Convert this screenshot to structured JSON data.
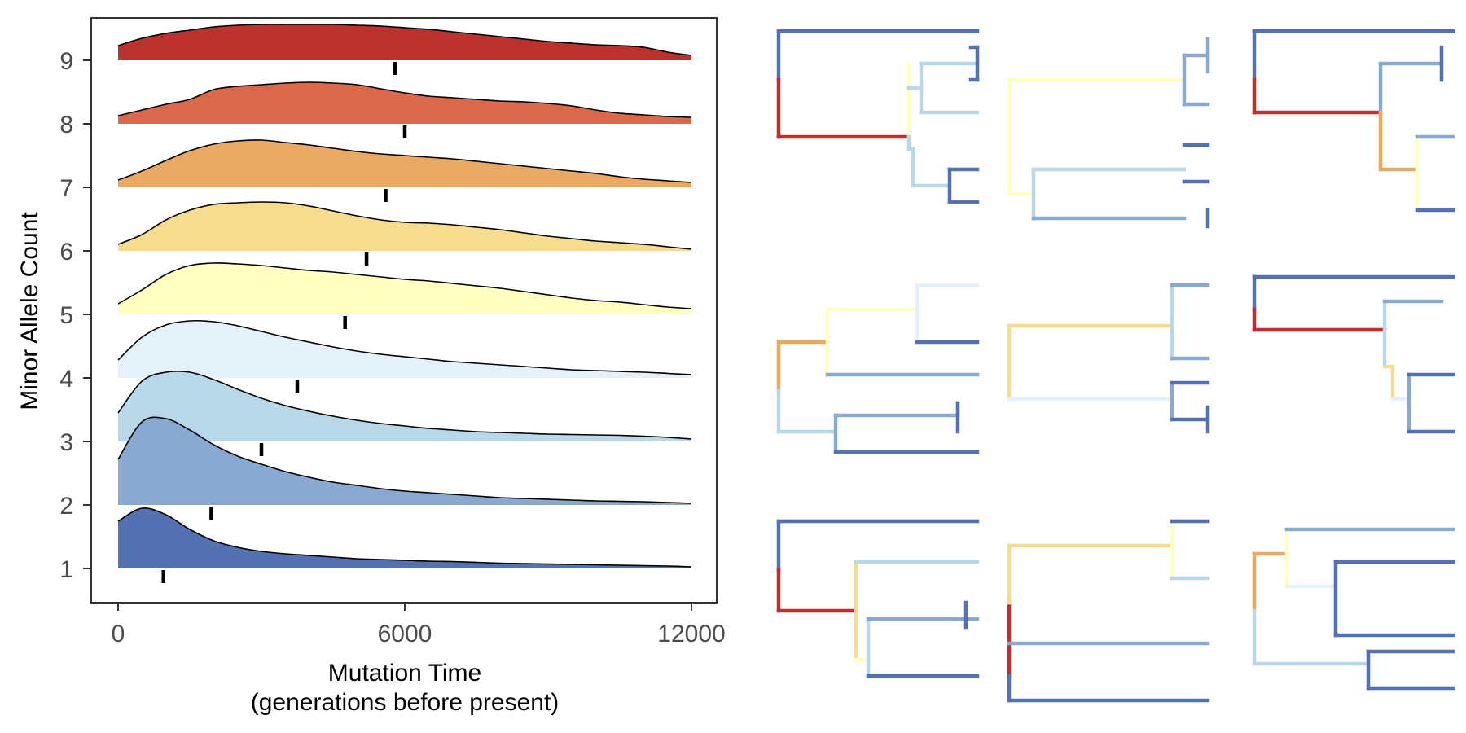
{
  "chart_data": [
    {
      "type": "area",
      "subtype": "ridgeline",
      "title": "",
      "xlabel": "Mutation Time",
      "xlabel_line2": "(generations before present)",
      "ylabel": "Minor Allele Count",
      "xlim": [
        0,
        12000
      ],
      "x_ticks": [
        0,
        6000,
        12000
      ],
      "x_tick_labels": [
        "0",
        "6000",
        "12000"
      ],
      "y_ticks": [
        1,
        2,
        3,
        4,
        5,
        6,
        7,
        8,
        9
      ],
      "y_tick_labels": [
        "1",
        "2",
        "3",
        "4",
        "5",
        "6",
        "7",
        "8",
        "9"
      ],
      "grid": false,
      "legend": "none",
      "x": [
        0,
        500,
        1000,
        1500,
        2000,
        2500,
        3000,
        3500,
        4000,
        4500,
        5000,
        5500,
        6000,
        6500,
        7000,
        7500,
        8000,
        8500,
        9000,
        9500,
        10000,
        10500,
        11000,
        11500,
        12000
      ],
      "series": [
        {
          "count": 1,
          "color": "#5471b2",
          "median": 950,
          "values": [
            0.58,
            0.74,
            0.66,
            0.48,
            0.34,
            0.26,
            0.21,
            0.18,
            0.16,
            0.14,
            0.12,
            0.11,
            0.1,
            0.09,
            0.085,
            0.075,
            0.065,
            0.06,
            0.055,
            0.05,
            0.045,
            0.04,
            0.035,
            0.03,
            0.02
          ]
        },
        {
          "count": 2,
          "color": "#89a9d0",
          "median": 1950,
          "values": [
            0.56,
            1.02,
            1.06,
            0.92,
            0.74,
            0.6,
            0.5,
            0.41,
            0.34,
            0.28,
            0.24,
            0.2,
            0.17,
            0.15,
            0.13,
            0.11,
            0.09,
            0.08,
            0.07,
            0.06,
            0.05,
            0.045,
            0.04,
            0.03,
            0.02
          ]
        },
        {
          "count": 3,
          "color": "#b8d7e8",
          "median": 3000,
          "values": [
            0.35,
            0.74,
            0.85,
            0.85,
            0.76,
            0.64,
            0.53,
            0.44,
            0.37,
            0.31,
            0.26,
            0.22,
            0.19,
            0.16,
            0.14,
            0.12,
            0.11,
            0.1,
            0.09,
            0.085,
            0.08,
            0.075,
            0.065,
            0.05,
            0.03
          ]
        },
        {
          "count": 4,
          "color": "#e4f1f8",
          "median": 3750,
          "values": [
            0.22,
            0.5,
            0.65,
            0.7,
            0.69,
            0.64,
            0.57,
            0.5,
            0.44,
            0.38,
            0.33,
            0.29,
            0.26,
            0.23,
            0.2,
            0.18,
            0.16,
            0.14,
            0.12,
            0.1,
            0.09,
            0.08,
            0.07,
            0.055,
            0.04
          ]
        },
        {
          "count": 5,
          "color": "#feffc1",
          "median": 4750,
          "values": [
            0.13,
            0.3,
            0.49,
            0.6,
            0.63,
            0.62,
            0.6,
            0.57,
            0.54,
            0.52,
            0.49,
            0.46,
            0.43,
            0.41,
            0.38,
            0.35,
            0.32,
            0.28,
            0.24,
            0.2,
            0.17,
            0.15,
            0.12,
            0.09,
            0.07
          ]
        },
        {
          "count": 6,
          "color": "#f6dc8f",
          "median": 5200,
          "values": [
            0.08,
            0.2,
            0.38,
            0.5,
            0.57,
            0.59,
            0.6,
            0.59,
            0.55,
            0.49,
            0.43,
            0.38,
            0.35,
            0.34,
            0.32,
            0.29,
            0.26,
            0.22,
            0.18,
            0.15,
            0.12,
            0.1,
            0.08,
            0.05,
            0.02
          ]
        },
        {
          "count": 7,
          "color": "#e9a962",
          "median": 5600,
          "values": [
            0.09,
            0.2,
            0.33,
            0.45,
            0.53,
            0.57,
            0.58,
            0.55,
            0.52,
            0.48,
            0.44,
            0.41,
            0.39,
            0.37,
            0.35,
            0.32,
            0.29,
            0.26,
            0.23,
            0.2,
            0.17,
            0.13,
            0.1,
            0.08,
            0.06
          ]
        },
        {
          "count": 8,
          "color": "#d9694a",
          "median": 6000,
          "values": [
            0.1,
            0.17,
            0.24,
            0.3,
            0.42,
            0.46,
            0.48,
            0.5,
            0.51,
            0.5,
            0.48,
            0.43,
            0.38,
            0.34,
            0.32,
            0.3,
            0.28,
            0.27,
            0.25,
            0.22,
            0.17,
            0.13,
            0.11,
            0.09,
            0.08
          ]
        },
        {
          "count": 9,
          "color": "#bb312d",
          "median": 5800,
          "values": [
            0.18,
            0.27,
            0.33,
            0.37,
            0.41,
            0.43,
            0.44,
            0.44,
            0.44,
            0.44,
            0.43,
            0.42,
            0.4,
            0.38,
            0.35,
            0.32,
            0.29,
            0.26,
            0.23,
            0.21,
            0.19,
            0.18,
            0.16,
            0.1,
            0.06
          ]
        }
      ]
    },
    {
      "type": "tree",
      "description_note": "nine genealogical trees (3x3), branches colored by minor allele count",
      "branch_colors": {
        "1": "#5471b2",
        "2": "#89a9d0",
        "3": "#b8d7e8",
        "4": "#e4f1f8",
        "5": "#feffc1",
        "6": "#f6dc8f",
        "7": "#e9a962",
        "8": "#d9694a",
        "9": "#bb312d"
      },
      "trees": [
        {
          "panel": "row1-col1",
          "newick": "(A:1,((B:1,C:1):1,(D:1,(E:1,F:1):1):1):1);"
        },
        {
          "panel": "row1-col2",
          "newick": "(((A:1,B:1):1,C:1):1,((D:1,E:1):1,F:1):1);"
        },
        {
          "panel": "row1-col3",
          "newick": "(A:1,((B:1,C:1):1,((D:1,E:1):1,(F:1,G:1):1):1):1);"
        },
        {
          "panel": "row2-col1",
          "newick": "(((A:1,B:1):1,C:1):1,((D:1,E:1):1,F:1):1);"
        },
        {
          "panel": "row2-col2",
          "newick": "(((A:1,B:1):1,C:1):1,((D:1,E:1):1,F:1):1);"
        },
        {
          "panel": "row2-col3",
          "newick": "(A:1,((B:1,C:1):1,((D:1,E:1):1,F:1):1):1);"
        },
        {
          "panel": "row3-col1",
          "newick": "(A:1,((B:1,C:1):1,((D:1,E:1):1,F:1):1):1);"
        },
        {
          "panel": "row3-col2",
          "newick": "(((A:1,B:1):1,C:1):1,(D:1,E:1):1);"
        },
        {
          "panel": "row3-col3",
          "newick": "((A:1,(B:1,C:1):1):1,(D:1,E:1):1);"
        }
      ]
    }
  ]
}
